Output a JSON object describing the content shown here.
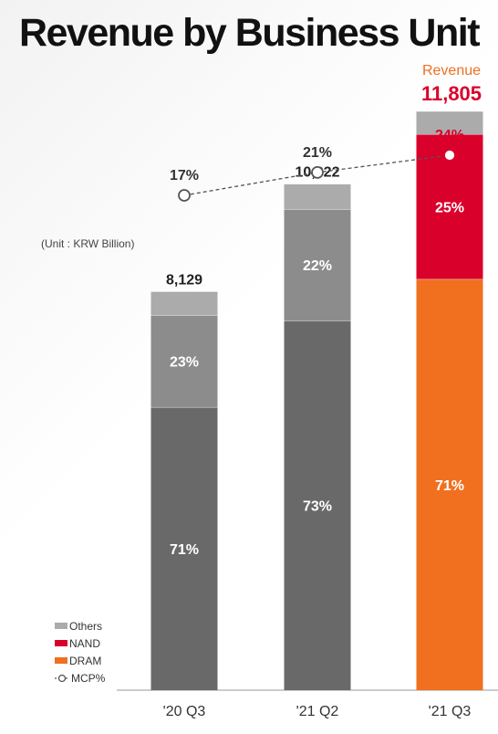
{
  "title": "Revenue by Business Unit",
  "unit_note": "(Unit : KRW Billion)",
  "colors": {
    "others": "#ababab",
    "nand": "#d9002b",
    "dram_orange": "#f07020",
    "dram_gray": "#696969",
    "nand_gray": "#8c8c8c",
    "mcp_line": "#555555",
    "highlight": "#d9002b"
  },
  "legend": {
    "others": "Others",
    "nand": "NAND",
    "dram": "DRAM",
    "mcp": "MCP%"
  },
  "chart_data": {
    "type": "bar",
    "stacked": true,
    "categories": [
      "'20 Q3",
      "'21 Q2",
      "'21 Q3"
    ],
    "totals": [
      8129,
      10322,
      11805
    ],
    "total_labels": [
      "8,129",
      "10,322",
      "11,805"
    ],
    "highlight_total_caption": "Revenue",
    "series": [
      {
        "name": "DRAM",
        "share_pct": [
          71,
          73,
          71
        ],
        "labels": [
          "71%",
          "73%",
          "71%"
        ]
      },
      {
        "name": "NAND",
        "share_pct": [
          23,
          22,
          25
        ],
        "labels": [
          "23%",
          "22%",
          "25%"
        ]
      },
      {
        "name": "Others",
        "share_pct": [
          6,
          5,
          4
        ]
      }
    ],
    "mcp": {
      "name": "MCP%",
      "values": [
        17,
        21,
        24
      ],
      "labels": [
        "17%",
        "21%",
        "24%"
      ]
    },
    "ylim": [
      0,
      12500
    ]
  }
}
